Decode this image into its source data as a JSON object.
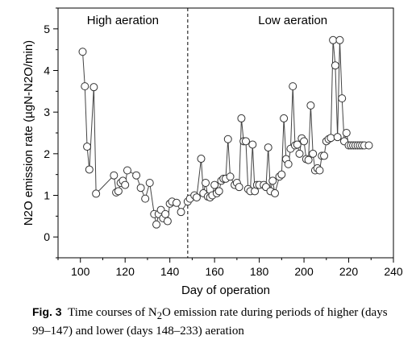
{
  "chart_data": {
    "type": "scatter",
    "xlabel": "Day of operation",
    "ylabel": "N2O emission rate (µgN-N2O/min)",
    "xlim": [
      90,
      240
    ],
    "ylim": [
      -0.5,
      5.5
    ],
    "xticks": [
      100,
      120,
      140,
      160,
      180,
      200,
      220,
      240
    ],
    "yticks": [
      0,
      1,
      2,
      3,
      4,
      5
    ],
    "grid": false,
    "divider_x": 148,
    "regions": [
      {
        "label": "High aeration",
        "x_center": 119
      },
      {
        "label": "Low aeration",
        "x_center": 195
      }
    ],
    "series": [
      {
        "x": [
          101,
          102,
          103,
          104,
          106,
          107,
          115,
          116,
          117,
          118,
          119,
          120,
          121,
          125,
          127,
          129,
          131,
          133,
          134,
          135,
          136,
          137,
          138,
          139,
          140,
          141,
          143,
          145,
          148,
          149,
          151,
          152,
          154,
          155,
          156,
          157,
          158,
          159,
          160,
          161,
          162,
          163,
          164,
          165,
          166,
          167,
          169,
          170,
          171,
          172,
          173,
          174,
          175,
          176,
          177,
          178,
          179,
          180,
          182,
          183,
          184,
          185,
          186,
          187,
          189,
          190,
          191,
          192,
          193,
          194,
          195,
          196,
          197,
          198,
          199,
          200,
          201,
          202,
          203,
          204,
          205,
          206,
          207,
          208,
          209,
          210,
          211,
          212,
          213,
          214,
          215,
          216,
          217,
          218,
          219,
          220,
          221,
          222,
          223,
          224,
          225,
          226,
          227,
          229
        ],
        "y": [
          4.45,
          3.62,
          2.17,
          1.62,
          3.6,
          1.04,
          1.48,
          1.07,
          1.1,
          1.3,
          1.35,
          1.25,
          1.6,
          1.48,
          1.18,
          0.92,
          1.3,
          0.55,
          0.3,
          0.55,
          0.65,
          0.45,
          0.55,
          0.38,
          0.8,
          0.85,
          0.82,
          0.6,
          0.85,
          0.92,
          1.0,
          0.95,
          1.88,
          1.05,
          1.3,
          0.97,
          0.95,
          1.0,
          1.25,
          1.05,
          1.1,
          1.35,
          1.4,
          1.4,
          2.35,
          1.45,
          1.25,
          1.3,
          1.2,
          2.85,
          2.3,
          2.3,
          1.15,
          1.1,
          2.22,
          1.1,
          1.25,
          1.25,
          1.25,
          1.2,
          2.15,
          1.1,
          1.35,
          1.05,
          1.45,
          1.5,
          2.85,
          1.87,
          1.75,
          2.12,
          3.62,
          2.2,
          2.22,
          2.0,
          2.37,
          2.3,
          1.87,
          1.85,
          3.16,
          2.0,
          1.6,
          1.65,
          1.6,
          1.95,
          1.95,
          2.3,
          2.35,
          2.38,
          4.73,
          4.12,
          2.4,
          4.73,
          3.33,
          2.3,
          2.5,
          2.2,
          2.2,
          2.2,
          2.2,
          2.2,
          2.2,
          2.2,
          2.2,
          2.2
        ]
      }
    ]
  },
  "caption": {
    "label": "Fig. 3",
    "text_before": "Time courses of N",
    "sub": "2",
    "text_after": "O emission rate during periods of higher (days 99–147) and lower (days 148–233) aeration"
  }
}
